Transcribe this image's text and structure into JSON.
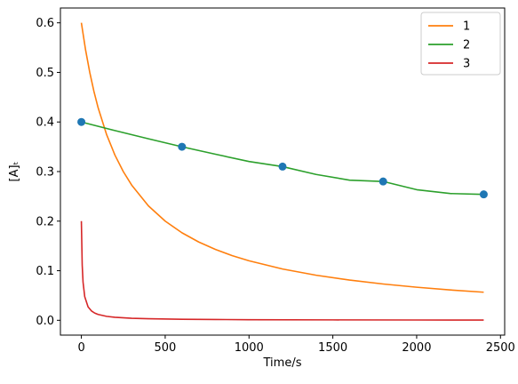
{
  "chart_data": {
    "type": "line",
    "xlabel": "Time/s",
    "ylabel": "[A]ₜ",
    "xlim": [
      -125,
      2525
    ],
    "ylim": [
      -0.0299,
      0.6299
    ],
    "xticks": [
      0,
      500,
      1000,
      1500,
      2000,
      2500
    ],
    "xtick_labels": [
      "0",
      "500",
      "1000",
      "1500",
      "2000",
      "2500"
    ],
    "yticks": [
      0.0,
      0.1,
      0.2,
      0.3,
      0.4,
      0.5,
      0.6
    ],
    "ytick_labels": [
      "0.0",
      "0.1",
      "0.2",
      "0.3",
      "0.4",
      "0.5",
      "0.6"
    ],
    "grid": false,
    "legend_position": "top-right",
    "series": [
      {
        "name": "1",
        "color": "#ff7f0e",
        "x": [
          0,
          25,
          50,
          75,
          100,
          150,
          200,
          250,
          300,
          400,
          500,
          600,
          700,
          800,
          900,
          1000,
          1200,
          1400,
          1600,
          1800,
          2000,
          2200,
          2400
        ],
        "y": [
          0.6,
          0.5455,
          0.5,
          0.4615,
          0.4286,
          0.375,
          0.3333,
          0.3,
          0.2727,
          0.2308,
          0.2,
          0.1765,
          0.1579,
          0.1429,
          0.1304,
          0.12,
          0.1034,
          0.0909,
          0.0811,
          0.0732,
          0.0667,
          0.0612,
          0.0566
        ]
      },
      {
        "name": "2",
        "color": "#2ca02c",
        "x": [
          0,
          200,
          400,
          600,
          800,
          1000,
          1200,
          1400,
          1600,
          1800,
          2000,
          2200,
          2400
        ],
        "y": [
          0.4,
          0.3827,
          0.3661,
          0.35,
          0.3349,
          0.3203,
          0.31,
          0.2942,
          0.2827,
          0.28,
          0.2634,
          0.2557,
          0.254
        ]
      },
      {
        "name": "3",
        "color": "#d62728",
        "x": [
          0,
          5,
          10,
          20,
          40,
          60,
          80,
          100,
          150,
          200,
          300,
          400,
          600,
          800,
          1000,
          1500,
          2000,
          2400
        ],
        "y": [
          0.2,
          0.1111,
          0.0769,
          0.0476,
          0.027,
          0.0189,
          0.0145,
          0.0118,
          0.008,
          0.0061,
          0.0041,
          0.0031,
          0.0021,
          0.0016,
          0.0012,
          0.0008,
          0.0006,
          0.0005
        ]
      }
    ],
    "markers": {
      "color": "#1f77b4",
      "x": [
        0,
        600,
        1200,
        1800,
        2400
      ],
      "y": [
        0.4,
        0.35,
        0.31,
        0.28,
        0.254
      ]
    }
  }
}
